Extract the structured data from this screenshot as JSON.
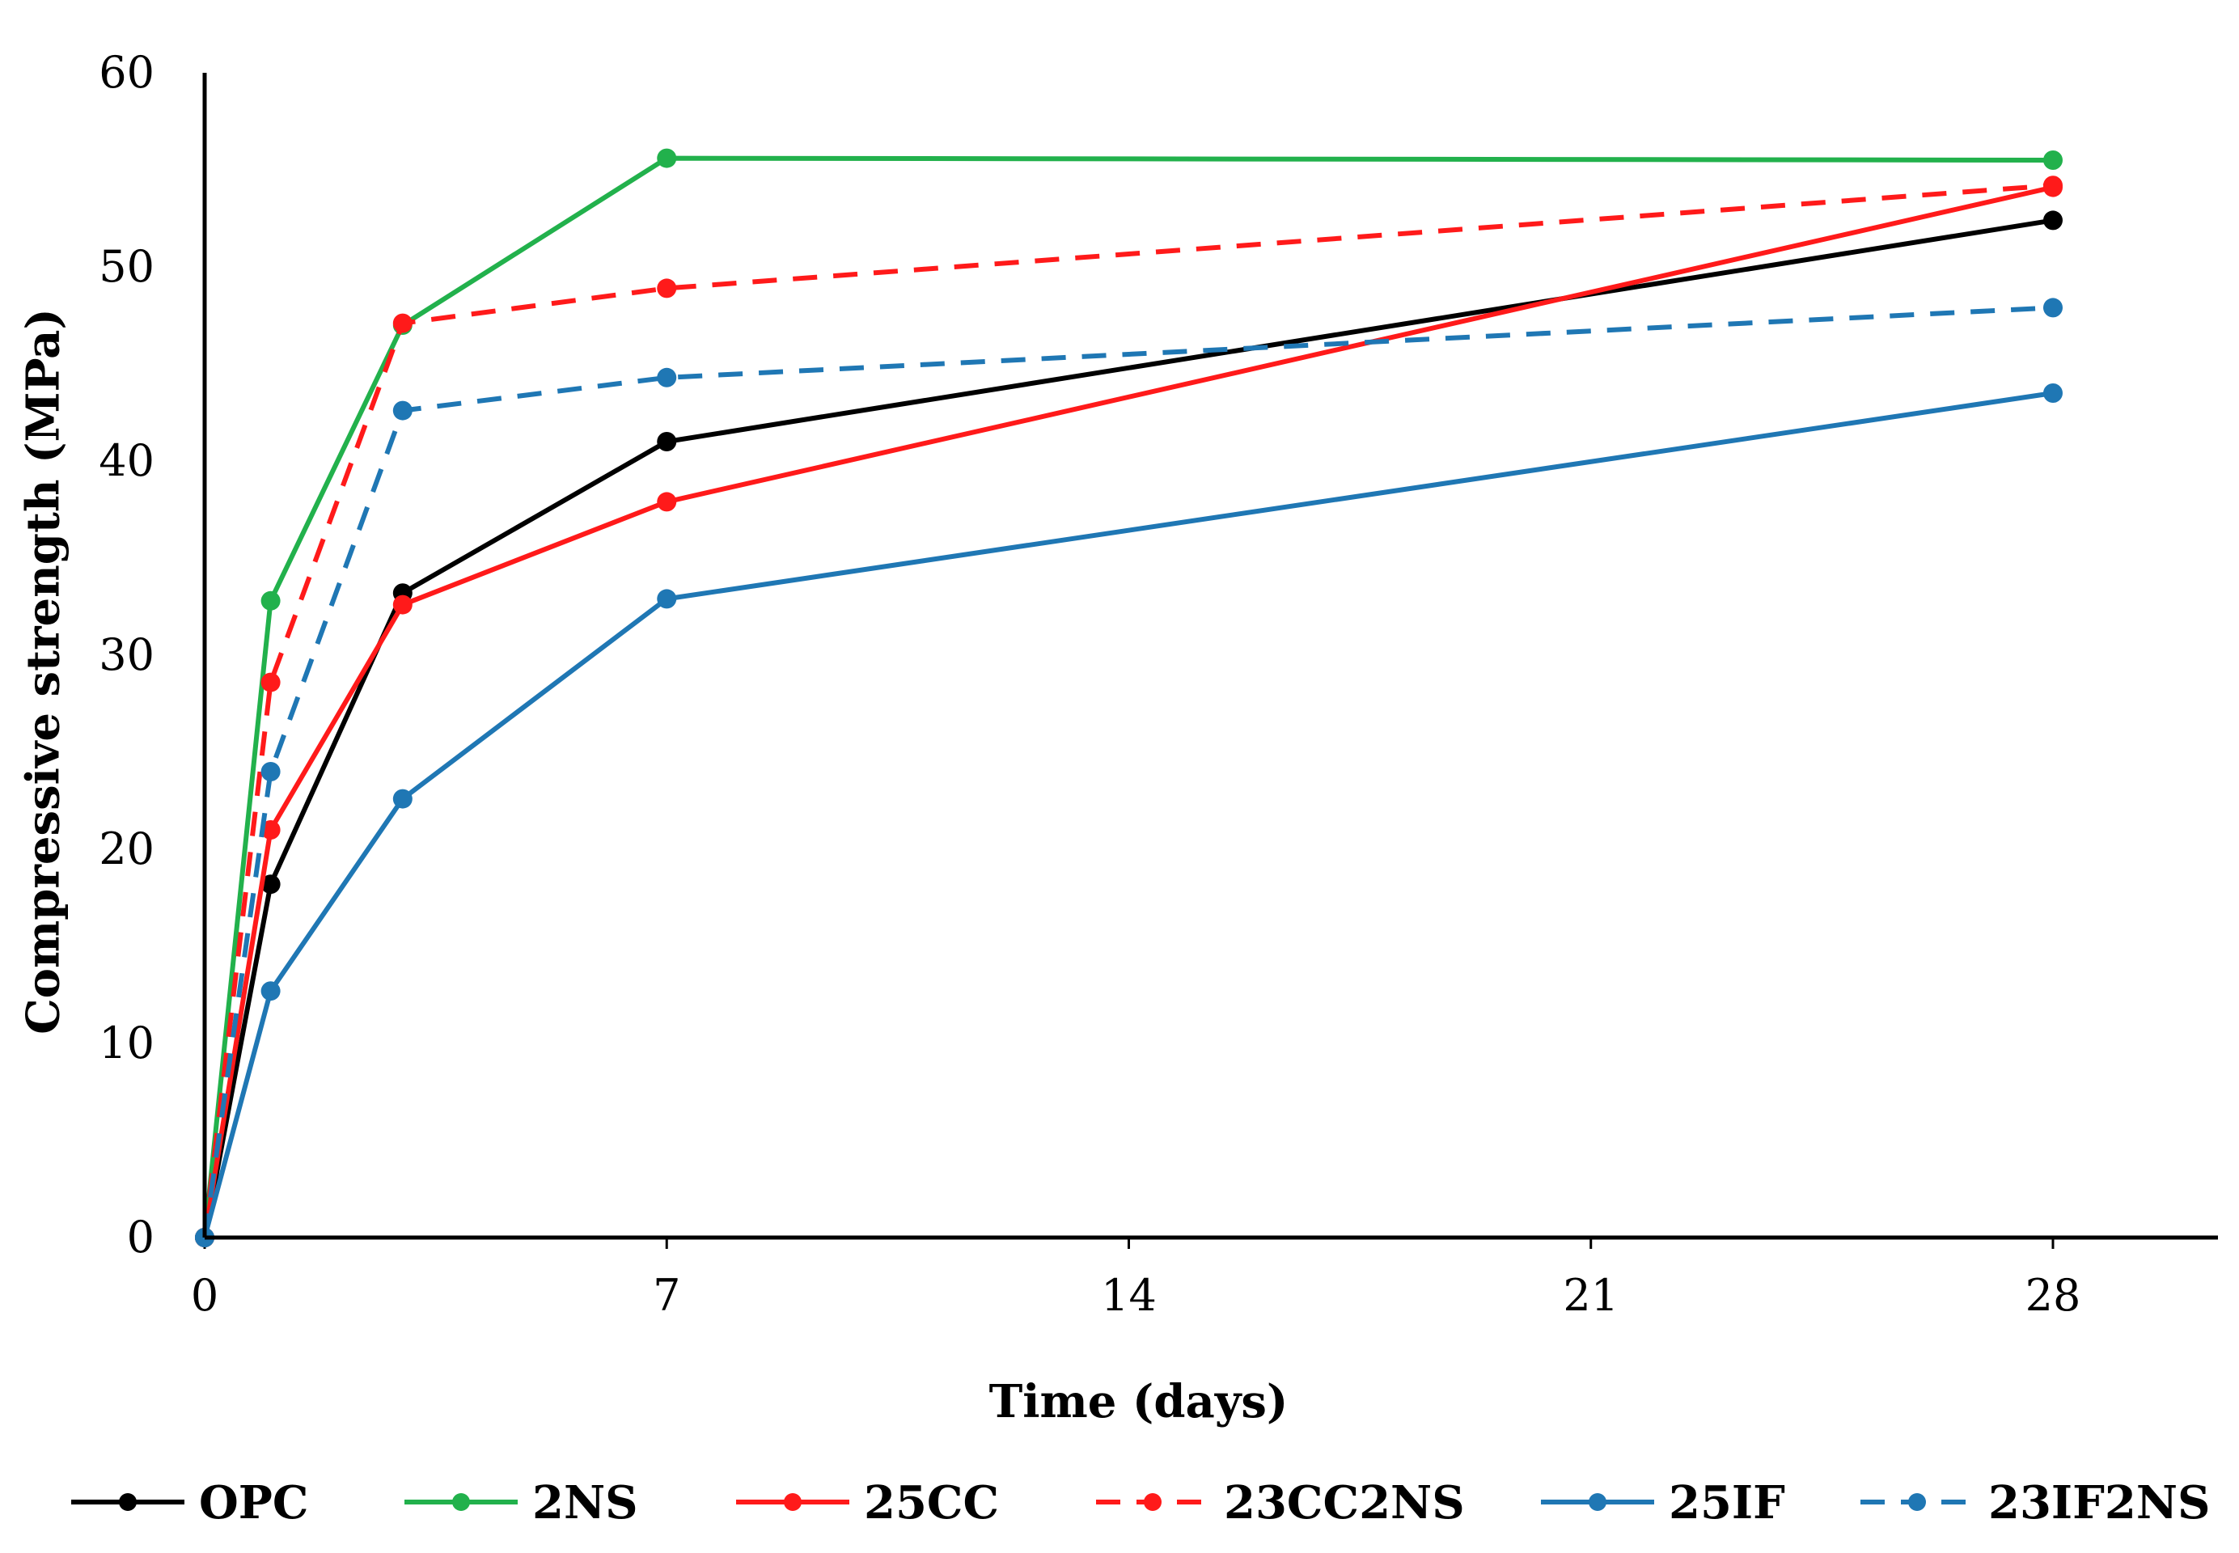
{
  "chart_data": {
    "type": "line",
    "title": "",
    "xlabel": "Time (days)",
    "ylabel": "Compressive strength (MPa)",
    "xlim": [
      0,
      30.5
    ],
    "ylim": [
      0,
      60
    ],
    "xticks": [
      "0",
      "7",
      "14",
      "21",
      "28"
    ],
    "xtick_values": [
      0,
      7,
      14,
      21,
      28
    ],
    "yticks": [
      "0",
      "10",
      "20",
      "30",
      "40",
      "50",
      "60"
    ],
    "ytick_values": [
      0,
      10,
      20,
      30,
      40,
      50,
      60
    ],
    "grid": false,
    "legend_position": "bottom",
    "x": [
      0,
      1,
      3,
      7,
      28
    ],
    "series": [
      {
        "name": "OPC",
        "values": [
          0,
          18.2,
          33.2,
          41.0,
          52.4
        ],
        "color": "#000000",
        "dashed": false
      },
      {
        "name": "2NS",
        "values": [
          0,
          32.8,
          47.0,
          55.6,
          55.5
        ],
        "color": "#22b14c",
        "dashed": false
      },
      {
        "name": "25CC",
        "values": [
          0,
          21.0,
          32.6,
          37.9,
          54.1
        ],
        "color": "#ff1a1a",
        "dashed": false
      },
      {
        "name": "23CC2NS",
        "values": [
          0,
          28.6,
          47.1,
          48.9,
          54.2
        ],
        "color": "#ff1a1a",
        "dashed": true
      },
      {
        "name": "25IF",
        "values": [
          0,
          12.7,
          22.6,
          32.9,
          43.5
        ],
        "color": "#1f77b4",
        "dashed": false
      },
      {
        "name": "23IF2NS",
        "values": [
          0,
          24.0,
          42.6,
          44.3,
          47.9
        ],
        "color": "#1f77b4",
        "dashed": true
      }
    ]
  }
}
